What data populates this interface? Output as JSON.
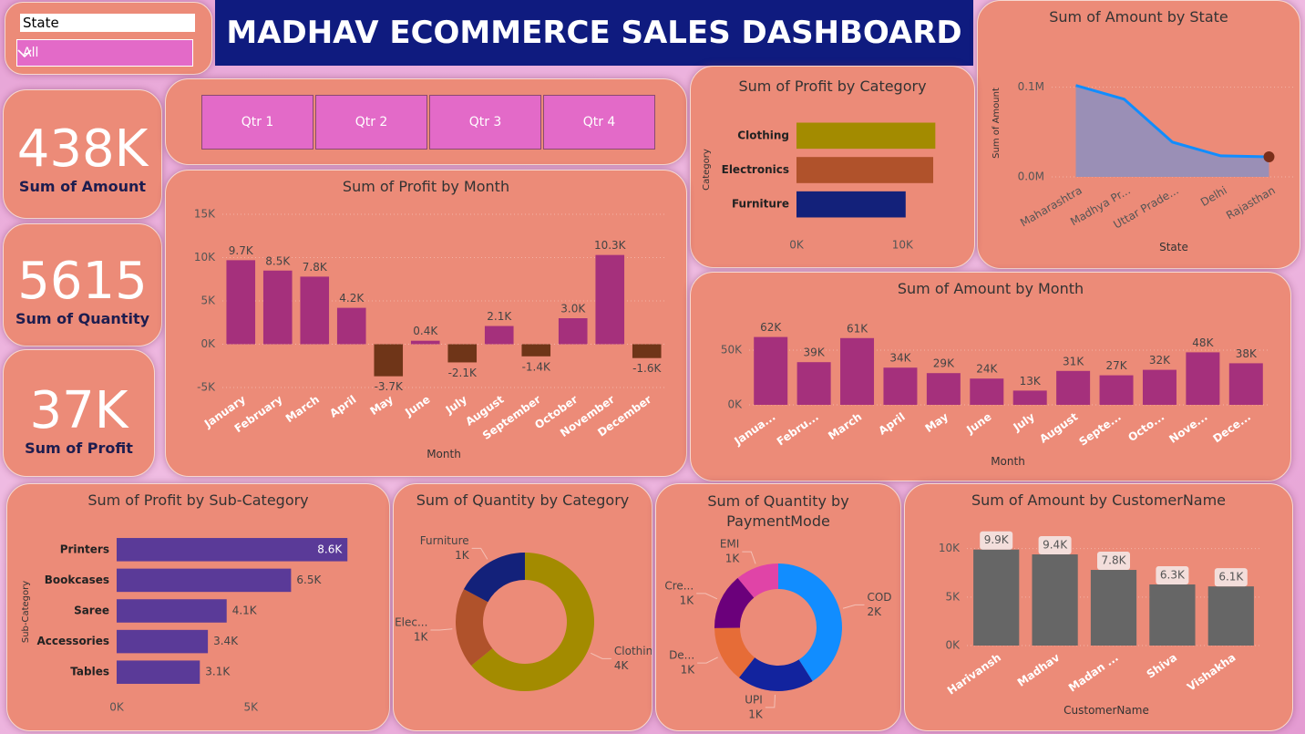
{
  "header": {
    "title": "MADHAV ECOMMERCE SALES DASHBOARD"
  },
  "slicer": {
    "label": "State",
    "value": "All"
  },
  "kpis": [
    {
      "value": "438K",
      "label": "Sum of Amount"
    },
    {
      "value": "5615",
      "label": "Sum of Quantity"
    },
    {
      "value": "37K",
      "label": "Sum of Profit"
    }
  ],
  "quarters": [
    "Qtr 1",
    "Qtr 2",
    "Qtr 3",
    "Qtr 4"
  ],
  "chart_data": [
    {
      "type": "area",
      "title": "Sum of Amount by State",
      "x_label": "State",
      "y_label": "Sum of Amount",
      "categories": [
        "Maharashtra",
        "Madhya Pr...",
        "Uttar Prade...",
        "Delhi",
        "Rajasthan"
      ],
      "values": [
        102000,
        86700,
        38800,
        23500,
        22400
      ],
      "color": "#118dff",
      "fill": "#9a8fb6",
      "marker_color": "#7a2e1a",
      "ylim": [
        0,
        120000
      ],
      "yticks": [
        {
          "value": 0,
          "label": "0.0M"
        },
        {
          "value": 100000,
          "label": "0.1M"
        }
      ],
      "grid": true
    },
    {
      "type": "hbar",
      "title": "Sum of Profit by Category",
      "y_label": "Category",
      "categories": [
        "Clothing",
        "Electronics",
        "Furniture"
      ],
      "values": [
        13100,
        12900,
        10300
      ],
      "colors": [
        "#a38b00",
        "#b0522b",
        "#13217a"
      ],
      "xlim": [
        0,
        13500
      ],
      "xticks": [
        {
          "value": 0,
          "label": "0K"
        },
        {
          "value": 10000,
          "label": "10K"
        }
      ]
    },
    {
      "type": "bar",
      "title": "Sum of Profit by Month",
      "x_label": "Month",
      "categories": [
        "January",
        "February",
        "March",
        "April",
        "May",
        "June",
        "July",
        "August",
        "September",
        "October",
        "November",
        "December"
      ],
      "values": [
        9700,
        8500,
        7800,
        4200,
        -3700,
        400,
        -2100,
        2100,
        -1400,
        3000,
        10300,
        -1600
      ],
      "value_labels": [
        "9.7K",
        "8.5K",
        "7.8K",
        "4.2K",
        "-3.7K",
        "0.4K",
        "-2.1K",
        "2.1K",
        "-1.4K",
        "3.0K",
        "10.3K",
        "-1.6K"
      ],
      "color": "#a5307c",
      "negative_color": "#6f3518",
      "ylim": [
        -5000,
        15000
      ],
      "yticks": [
        {
          "value": -5000,
          "label": "-5K"
        },
        {
          "value": 0,
          "label": "0K"
        },
        {
          "value": 5000,
          "label": "5K"
        },
        {
          "value": 10000,
          "label": "10K"
        },
        {
          "value": 15000,
          "label": "15K"
        }
      ],
      "grid": true
    },
    {
      "type": "bar",
      "title": "Sum of Amount by Month",
      "x_label": "Month",
      "categories": [
        "Janua...",
        "Febru...",
        "March",
        "April",
        "May",
        "June",
        "July",
        "August",
        "Septe...",
        "Octo...",
        "Nove...",
        "Dece..."
      ],
      "values": [
        62000,
        39000,
        61000,
        34000,
        29000,
        24000,
        13000,
        31000,
        27000,
        32000,
        48000,
        38000
      ],
      "value_labels": [
        "62K",
        "39K",
        "61K",
        "34K",
        "29K",
        "24K",
        "13K",
        "31K",
        "27K",
        "32K",
        "48K",
        "38K"
      ],
      "color": "#a5307c",
      "ylim": [
        0,
        75000
      ],
      "yticks": [
        {
          "value": 0,
          "label": "0K"
        },
        {
          "value": 50000,
          "label": "50K"
        }
      ],
      "grid": true
    },
    {
      "type": "hbar",
      "title": "Sum of Profit by Sub-Category",
      "y_label": "Sub-Category",
      "categories": [
        "Printers",
        "Bookcases",
        "Saree",
        "Accessories",
        "Tables"
      ],
      "values": [
        8600,
        6500,
        4100,
        3400,
        3100
      ],
      "value_labels": [
        "8.6K",
        "6.5K",
        "4.1K",
        "3.4K",
        "3.1K"
      ],
      "color": "#5a3a98",
      "xlim": [
        0,
        9000
      ],
      "xticks": [
        {
          "value": 0,
          "label": "0K"
        },
        {
          "value": 5000,
          "label": "5K"
        }
      ]
    },
    {
      "type": "donut",
      "title": "Sum of Quantity by Category",
      "categories": [
        "Clothing",
        "Elec...",
        "Furniture"
      ],
      "values": [
        3600,
        1050,
        965
      ],
      "value_labels": [
        "4K",
        "1K",
        "1K"
      ],
      "colors": [
        "#a38b00",
        "#b0522b",
        "#13217a"
      ]
    },
    {
      "type": "donut",
      "title": "Sum of Quantity by PaymentMode",
      "categories": [
        "COD",
        "UPI",
        "De...",
        "Cre...",
        "EMI"
      ],
      "values": [
        2300,
        1100,
        800,
        800,
        615
      ],
      "value_labels": [
        "2K",
        "1K",
        "1K",
        "1K",
        "1K"
      ],
      "colors": [
        "#118dff",
        "#12239e",
        "#e66c37",
        "#6b007b",
        "#e044a7"
      ]
    },
    {
      "type": "bar",
      "title": "Sum of Amount by CustomerName",
      "x_label": "CustomerName",
      "categories": [
        "Harivansh",
        "Madhav",
        "Madan ...",
        "Shiva",
        "Vishakha"
      ],
      "values": [
        9900,
        9400,
        7800,
        6300,
        6100
      ],
      "value_labels": [
        "9.9K",
        "9.4K",
        "7.8K",
        "6.3K",
        "6.1K"
      ],
      "color": "#666666",
      "label_box": true,
      "ylim": [
        0,
        11000
      ],
      "yticks": [
        {
          "value": 0,
          "label": "0K"
        },
        {
          "value": 5000,
          "label": "5K"
        },
        {
          "value": 10000,
          "label": "10K"
        }
      ],
      "grid": true
    }
  ]
}
